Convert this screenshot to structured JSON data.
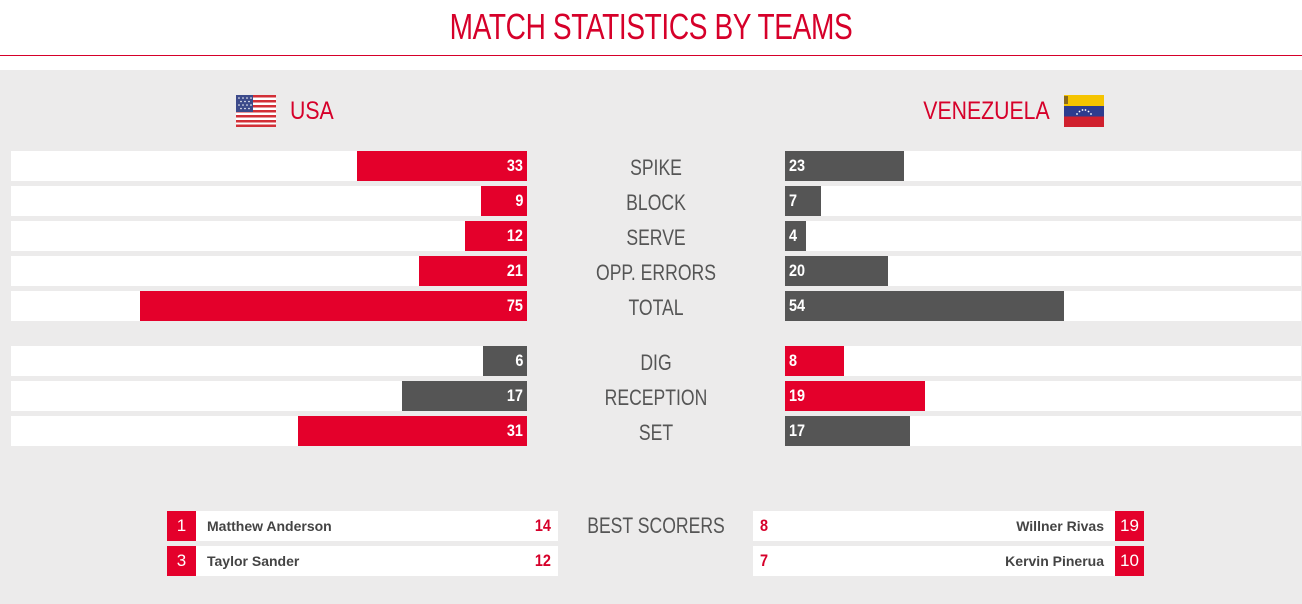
{
  "title": "MATCH STATISTICS BY TEAMS",
  "colors": {
    "accent": "#e4002b",
    "dark_bar": "#555555",
    "panel_bg": "#ecebeb"
  },
  "teams": {
    "home": {
      "name": "USA",
      "flag_icon": "usa-flag-icon"
    },
    "away": {
      "name": "VENEZUELA",
      "flag_icon": "venezuela-flag-icon"
    }
  },
  "chart_data": {
    "type": "bar",
    "title": "MATCH STATISTICS BY TEAMS",
    "orientation": "horizontal-butterfly",
    "categories": [
      "SPIKE",
      "BLOCK",
      "SERVE",
      "OPP. ERRORS",
      "TOTAL",
      "DIG",
      "RECEPTION",
      "SET"
    ],
    "series": [
      {
        "name": "USA",
        "values": [
          33,
          9,
          12,
          21,
          75,
          6,
          17,
          31
        ]
      },
      {
        "name": "VENEZUELA",
        "values": [
          23,
          7,
          4,
          20,
          54,
          8,
          19,
          17
        ]
      }
    ],
    "groups": [
      {
        "categories": [
          "SPIKE",
          "BLOCK",
          "SERVE",
          "OPP. ERRORS",
          "TOTAL"
        ],
        "max": 100
      },
      {
        "categories": [
          "DIG",
          "RECEPTION",
          "SET"
        ],
        "max": 70
      }
    ],
    "highlight": {
      "USA": [
        "red",
        "red",
        "red",
        "red",
        "red",
        "gray",
        "gray",
        "red"
      ],
      "VENEZUELA": [
        "gray",
        "gray",
        "gray",
        "gray",
        "gray",
        "red",
        "red",
        "gray"
      ]
    }
  },
  "best_scorers": {
    "label": "BEST SCORERS",
    "home": [
      {
        "number": "1",
        "name": "Matthew Anderson",
        "points": "14"
      },
      {
        "number": "3",
        "name": "Taylor Sander",
        "points": "12"
      }
    ],
    "away": [
      {
        "number": "19",
        "name": "Willner Rivas",
        "points": "8"
      },
      {
        "number": "10",
        "name": "Kervin Pinerua",
        "points": "7"
      }
    ]
  }
}
